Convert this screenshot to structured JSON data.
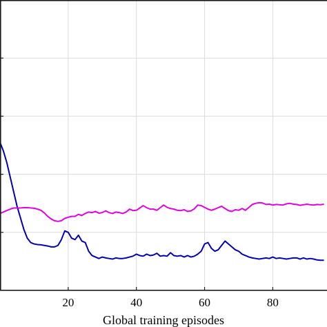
{
  "chart_data": {
    "type": "line",
    "xlabel": "Global training episodes",
    "ylabel": "",
    "xlim": [
      0,
      95.9
    ],
    "ylim": [
      0,
      1
    ],
    "x_ticks": [
      20,
      40,
      60,
      80
    ],
    "y_gridlines": [
      0.2,
      0.4,
      0.6,
      0.8
    ],
    "grid": true,
    "x": [
      0,
      1,
      2,
      3,
      4,
      5,
      6,
      7,
      8,
      9,
      10,
      11,
      12,
      13,
      14,
      15,
      16,
      17,
      18,
      19,
      20,
      21,
      22,
      23,
      24,
      25,
      26,
      27,
      28,
      29,
      30,
      31,
      32,
      33,
      34,
      35,
      36,
      37,
      38,
      39,
      40,
      41,
      42,
      43,
      44,
      45,
      46,
      47,
      48,
      49,
      50,
      51,
      52,
      53,
      54,
      55,
      56,
      57,
      58,
      59,
      60,
      61,
      62,
      63,
      64,
      65,
      66,
      67,
      68,
      69,
      70,
      71,
      72,
      73,
      74,
      75,
      76,
      77,
      78,
      79,
      80,
      81,
      82,
      83,
      84,
      85,
      86,
      87,
      88,
      89,
      90,
      91,
      92,
      93,
      94,
      95
    ],
    "series": [
      {
        "color": "#0000b4",
        "values": [
          0.51,
          0.48,
          0.44,
          0.39,
          0.34,
          0.29,
          0.25,
          0.21,
          0.18,
          0.165,
          0.16,
          0.158,
          0.157,
          0.155,
          0.153,
          0.15,
          0.15,
          0.155,
          0.175,
          0.205,
          0.2,
          0.18,
          0.175,
          0.19,
          0.17,
          0.165,
          0.135,
          0.12,
          0.115,
          0.11,
          0.115,
          0.112,
          0.11,
          0.108,
          0.112,
          0.11,
          0.11,
          0.112,
          0.115,
          0.118,
          0.125,
          0.12,
          0.118,
          0.125,
          0.12,
          0.122,
          0.128,
          0.118,
          0.12,
          0.118,
          0.13,
          0.12,
          0.118,
          0.12,
          0.115,
          0.12,
          0.115,
          0.118,
          0.125,
          0.135,
          0.16,
          0.165,
          0.145,
          0.135,
          0.14,
          0.155,
          0.17,
          0.16,
          0.15,
          0.14,
          0.135,
          0.125,
          0.12,
          0.115,
          0.112,
          0.11,
          0.108,
          0.11,
          0.112,
          0.11,
          0.115,
          0.11,
          0.112,
          0.11,
          0.108,
          0.11,
          0.112,
          0.112,
          0.108,
          0.112,
          0.108,
          0.11,
          0.108,
          0.105,
          0.104,
          0.104
        ]
      },
      {
        "color": "#e000e0",
        "values": [
          0.265,
          0.27,
          0.275,
          0.28,
          0.284,
          0.284,
          0.284,
          0.285,
          0.285,
          0.284,
          0.283,
          0.28,
          0.276,
          0.267,
          0.255,
          0.246,
          0.24,
          0.238,
          0.24,
          0.248,
          0.252,
          0.255,
          0.255,
          0.262,
          0.258,
          0.265,
          0.27,
          0.268,
          0.272,
          0.266,
          0.268,
          0.274,
          0.268,
          0.265,
          0.27,
          0.268,
          0.265,
          0.27,
          0.28,
          0.275,
          0.276,
          0.284,
          0.292,
          0.285,
          0.28,
          0.28,
          0.276,
          0.285,
          0.294,
          0.286,
          0.282,
          0.28,
          0.276,
          0.275,
          0.278,
          0.272,
          0.274,
          0.281,
          0.294,
          0.292,
          0.286,
          0.28,
          0.276,
          0.28,
          0.285,
          0.29,
          0.282,
          0.275,
          0.272,
          0.278,
          0.276,
          0.282,
          0.276,
          0.286,
          0.296,
          0.3,
          0.302,
          0.301,
          0.296,
          0.297,
          0.294,
          0.296,
          0.295,
          0.294,
          0.298,
          0.3,
          0.297,
          0.296,
          0.293,
          0.295,
          0.297,
          0.295,
          0.294,
          0.296,
          0.295,
          0.297
        ]
      }
    ]
  }
}
